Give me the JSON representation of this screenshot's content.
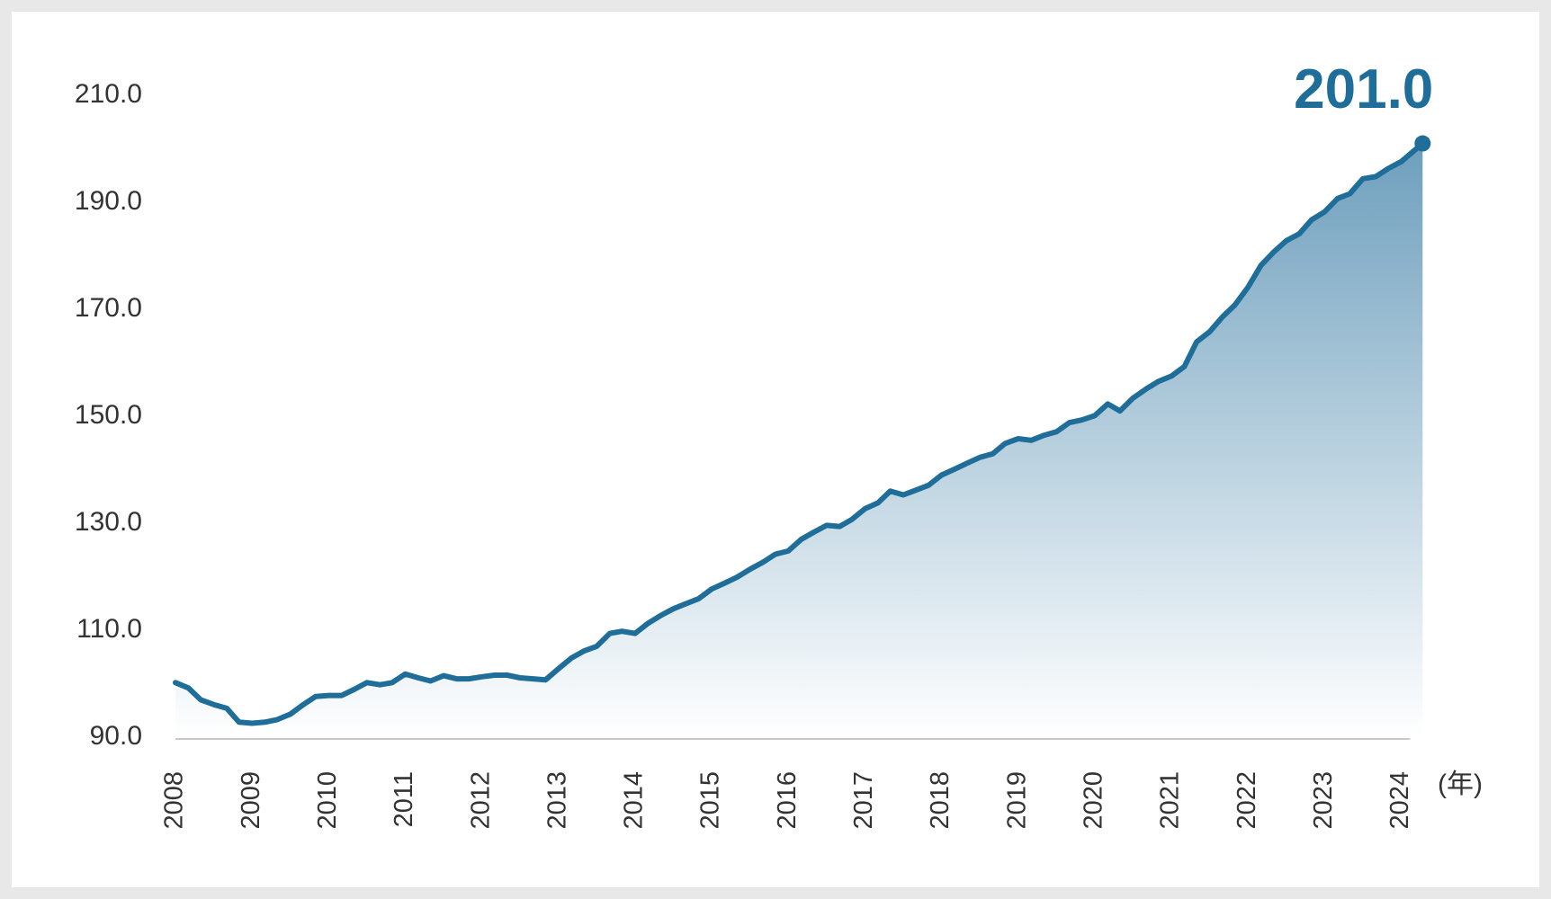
{
  "chart_data": {
    "type": "area",
    "x": [
      2008.0,
      2008.17,
      2008.33,
      2008.5,
      2008.67,
      2008.83,
      2009.0,
      2009.17,
      2009.33,
      2009.5,
      2009.67,
      2009.83,
      2010.0,
      2010.17,
      2010.33,
      2010.5,
      2010.67,
      2010.83,
      2011.0,
      2011.17,
      2011.33,
      2011.5,
      2011.67,
      2011.83,
      2012.0,
      2012.17,
      2012.33,
      2012.5,
      2012.67,
      2012.83,
      2013.0,
      2013.17,
      2013.33,
      2013.5,
      2013.67,
      2013.83,
      2014.0,
      2014.17,
      2014.33,
      2014.5,
      2014.67,
      2014.83,
      2015.0,
      2015.17,
      2015.33,
      2015.5,
      2015.67,
      2015.83,
      2016.0,
      2016.17,
      2016.33,
      2016.5,
      2016.67,
      2016.83,
      2017.0,
      2017.17,
      2017.33,
      2017.5,
      2017.67,
      2017.83,
      2018.0,
      2018.17,
      2018.33,
      2018.5,
      2018.67,
      2018.83,
      2019.0,
      2019.17,
      2019.33,
      2019.5,
      2019.67,
      2019.83,
      2020.0,
      2020.17,
      2020.33,
      2020.5,
      2020.67,
      2020.83,
      2021.0,
      2021.17,
      2021.33,
      2021.5,
      2021.67,
      2021.83,
      2022.0,
      2022.17,
      2022.33,
      2022.5,
      2022.67,
      2022.83,
      2023.0,
      2023.17,
      2023.33,
      2023.5,
      2023.67,
      2023.83,
      2024.0,
      2024.28
    ],
    "values": [
      100.2,
      99.2,
      97.0,
      96.1,
      95.4,
      92.8,
      92.6,
      92.8,
      93.3,
      94.3,
      96.1,
      97.6,
      97.8,
      97.8,
      98.9,
      100.2,
      99.8,
      100.2,
      101.8,
      101.1,
      100.5,
      101.5,
      100.9,
      100.9,
      101.3,
      101.6,
      101.6,
      101.1,
      100.9,
      100.7,
      102.8,
      104.8,
      106.1,
      107.0,
      109.4,
      109.8,
      109.4,
      111.3,
      112.7,
      114.0,
      115.0,
      115.9,
      117.7,
      118.8,
      119.9,
      121.4,
      122.7,
      124.2,
      124.8,
      127.0,
      128.3,
      129.6,
      129.4,
      130.7,
      132.7,
      133.8,
      136.0,
      135.3,
      136.2,
      137.1,
      139.0,
      140.1,
      141.2,
      142.3,
      143.0,
      144.9,
      145.8,
      145.5,
      146.4,
      147.1,
      148.8,
      149.3,
      150.1,
      152.3,
      151.0,
      153.4,
      155.1,
      156.5,
      157.5,
      159.3,
      163.9,
      165.8,
      168.6,
      170.8,
      174.1,
      178.2,
      180.6,
      182.8,
      184.1,
      186.7,
      188.2,
      190.7,
      191.6,
      194.4,
      194.8,
      196.3,
      197.6,
      201.0
    ],
    "value_labels": [
      null,
      null,
      null,
      null,
      null,
      null,
      null,
      null,
      null,
      null,
      null,
      null,
      null,
      null,
      null,
      null,
      null,
      null,
      null,
      null,
      null,
      null,
      null,
      null,
      null,
      null,
      null,
      null,
      null,
      null,
      null,
      null,
      null,
      null,
      null,
      null,
      null,
      null,
      null,
      null,
      null,
      null,
      null,
      null,
      null,
      null,
      null,
      null,
      null,
      null,
      null,
      null,
      null,
      null,
      null,
      null,
      null,
      null,
      null,
      null,
      null,
      null,
      null,
      null,
      null,
      null,
      null,
      null,
      null,
      null,
      null,
      null,
      null,
      null,
      null,
      null,
      null,
      null,
      null,
      null,
      null,
      null,
      null,
      null,
      null,
      null,
      null,
      null,
      null,
      null,
      null,
      null,
      null,
      null,
      null,
      null,
      null,
      "201.0"
    ],
    "color": "#1f6e9a",
    "xlabel": "(年)",
    "xlim": [
      2008,
      2024.3
    ],
    "xticks": [
      2008,
      2009,
      2010,
      2011,
      2012,
      2013,
      2014,
      2015,
      2016,
      2017,
      2018,
      2019,
      2020,
      2021,
      2022,
      2023,
      2024
    ],
    "ylim": [
      90,
      210
    ],
    "yticks": [
      {
        "value": 90,
        "label": "90.0"
      },
      {
        "value": 110,
        "label": "110.0"
      },
      {
        "value": 130,
        "label": "130.0"
      },
      {
        "value": 150,
        "label": "150.0"
      },
      {
        "value": 170,
        "label": "170.0"
      },
      {
        "value": 190,
        "label": "190.0"
      },
      {
        "value": 210,
        "label": "210.0"
      }
    ]
  }
}
